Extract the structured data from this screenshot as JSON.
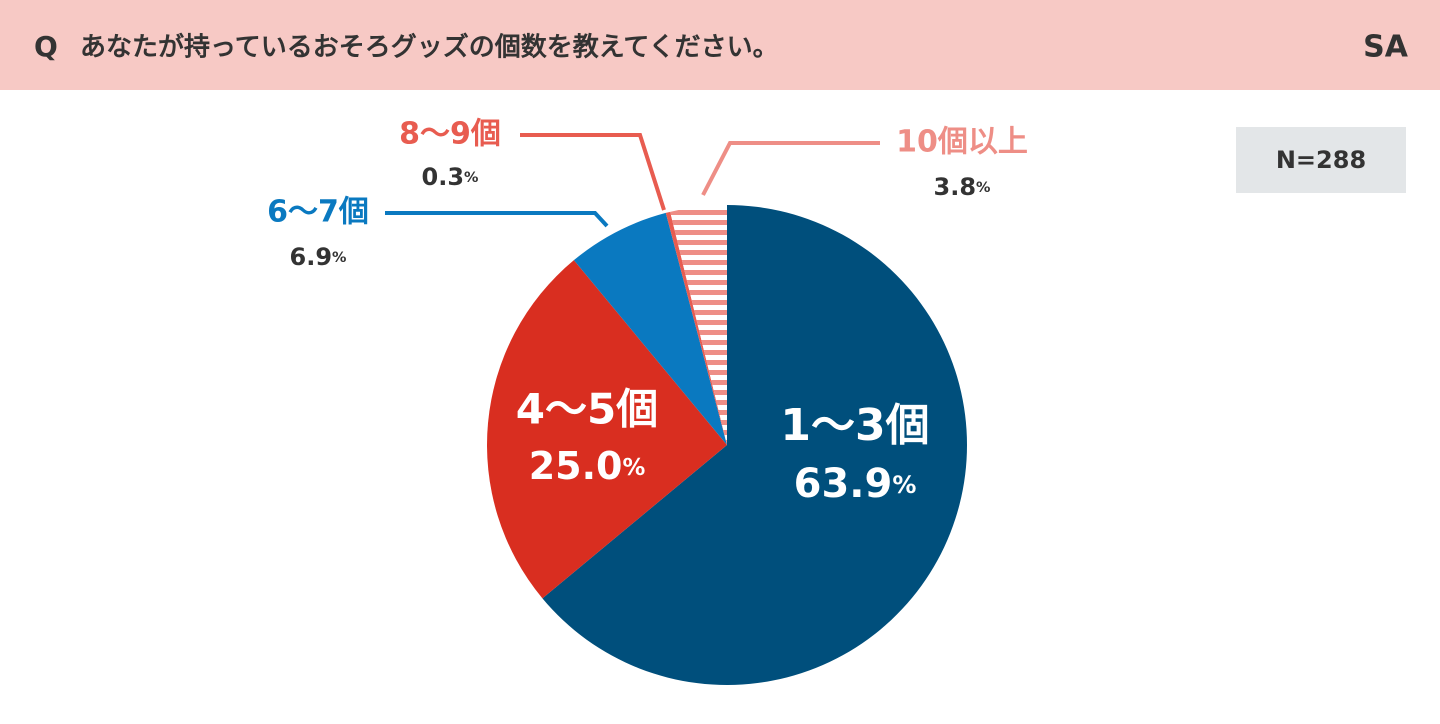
{
  "header": {
    "question_label": "Q",
    "title": "あなたが持っているおそろグッズの個数を教えてください。",
    "badge": "SA"
  },
  "sample_size": "N=288",
  "chart_data": {
    "type": "pie",
    "categories": [
      "1〜3個",
      "4〜5個",
      "6〜7個",
      "8〜9個",
      "10個以上"
    ],
    "values": [
      63.9,
      25.0,
      6.9,
      0.3,
      3.8
    ],
    "value_labels": [
      "63.9%",
      "25.0%",
      "6.9%",
      "0.3%",
      "3.8%"
    ],
    "colors": [
      "#004f7c",
      "#d92e20",
      "#0a79c0",
      "#e85c50",
      "#ee8e86"
    ],
    "patterns": [
      null,
      null,
      null,
      null,
      "stripes"
    ]
  }
}
